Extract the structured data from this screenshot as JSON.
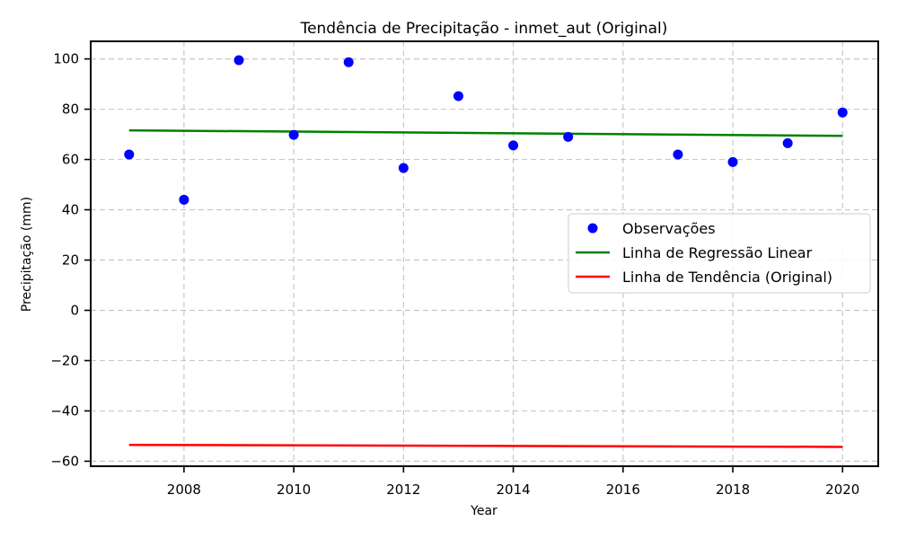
{
  "chart_data": {
    "type": "scatter",
    "title": "Tendência de Precipitação - inmet_aut (Original)",
    "xlabel": "Year",
    "ylabel": "Precipitação (mm)",
    "xlim": [
      2006.3,
      2020.65
    ],
    "ylim": [
      -62,
      107
    ],
    "xticks": [
      2008,
      2010,
      2012,
      2014,
      2016,
      2018,
      2020
    ],
    "yticks": [
      -60,
      -40,
      -20,
      0,
      20,
      40,
      60,
      80,
      100
    ],
    "grid": true,
    "legend_position": "center-right",
    "series": [
      {
        "name": "Observações",
        "kind": "scatter",
        "color": "#0000ff",
        "x": [
          2007,
          2008,
          2009,
          2010,
          2011,
          2012,
          2013,
          2014,
          2015,
          2017,
          2018,
          2019,
          2020
        ],
        "y": [
          62,
          44,
          99.5,
          69.8,
          98.7,
          56.6,
          85.2,
          65.6,
          69,
          62,
          59,
          66.5,
          78.7
        ]
      },
      {
        "name": "Linha de Regressão Linear",
        "kind": "line",
        "color": "#008000",
        "x": [
          2007,
          2020
        ],
        "y": [
          71.6,
          69.4
        ]
      },
      {
        "name": "Linha de Tendência (Original)",
        "kind": "line",
        "color": "#ff0000",
        "x": [
          2007,
          2020
        ],
        "y": [
          -53.5,
          -54.3
        ]
      }
    ]
  }
}
